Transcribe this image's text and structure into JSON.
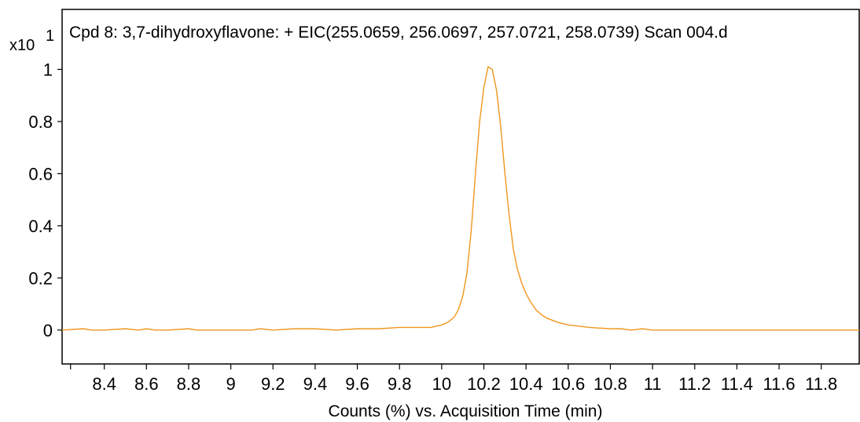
{
  "chart_data": {
    "type": "line",
    "title": "Cpd 8: 3,7-dihydroxyflavone: + EIC(255.0659, 256.0697, 257.0721, 258.0739) Scan 004.d",
    "xlabel": "Counts (%) vs. Acquisition Time (min)",
    "ylabel": "",
    "y_multiplier": "x10",
    "y_multiplier_exp": "1",
    "xlim": [
      8.2,
      11.98
    ],
    "ylim": [
      -0.13,
      1.23
    ],
    "x_ticks": [
      8.4,
      8.6,
      8.8,
      9,
      9.2,
      9.4,
      9.6,
      9.8,
      10,
      10.2,
      10.4,
      10.6,
      10.8,
      11,
      11.2,
      11.4,
      11.6,
      11.8
    ],
    "x_tick_labels": [
      "8.4",
      "8.6",
      "8.8",
      "9",
      "9.2",
      "9.4",
      "9.6",
      "9.8",
      "10",
      "10.2",
      "10.4",
      "10.6",
      "10.8",
      "11",
      "11.2",
      "11.4",
      "11.6",
      "11.8"
    ],
    "y_ticks": [
      0,
      0.2,
      0.4,
      0.6,
      0.8,
      1
    ],
    "y_tick_labels": [
      "0",
      "0.2",
      "0.4",
      "0.6",
      "0.8",
      "1"
    ],
    "grid": false,
    "line_color": "#f0961e",
    "series": [
      {
        "x": [
          8.2,
          8.3,
          8.34,
          8.4,
          8.5,
          8.56,
          8.6,
          8.64,
          8.7,
          8.8,
          8.84,
          8.9,
          9.0,
          9.1,
          9.14,
          9.2,
          9.3,
          9.4,
          9.5,
          9.6,
          9.7,
          9.8,
          9.86,
          9.9,
          9.95,
          10.0,
          10.03,
          10.06,
          10.08,
          10.1,
          10.12,
          10.14,
          10.16,
          10.18,
          10.2,
          10.22,
          10.24,
          10.26,
          10.28,
          10.3,
          10.32,
          10.34,
          10.36,
          10.38,
          10.4,
          10.42,
          10.45,
          10.48,
          10.5,
          10.55,
          10.6,
          10.65,
          10.7,
          10.8,
          10.85,
          10.9,
          10.95,
          11.0,
          11.1,
          11.2,
          11.3,
          11.4,
          11.5,
          11.6,
          11.7,
          11.8,
          11.9,
          11.98
        ],
        "y": [
          0.0,
          0.005,
          0.0,
          0.0,
          0.005,
          0.0,
          0.005,
          0.0,
          0.0,
          0.005,
          0.0,
          0.0,
          0.0,
          0.0,
          0.005,
          0.0,
          0.005,
          0.005,
          0.0,
          0.005,
          0.005,
          0.01,
          0.01,
          0.01,
          0.01,
          0.02,
          0.03,
          0.05,
          0.08,
          0.13,
          0.22,
          0.38,
          0.6,
          0.8,
          0.93,
          1.01,
          1.0,
          0.92,
          0.78,
          0.6,
          0.44,
          0.31,
          0.23,
          0.18,
          0.14,
          0.11,
          0.075,
          0.055,
          0.045,
          0.03,
          0.02,
          0.015,
          0.01,
          0.005,
          0.005,
          0.0,
          0.005,
          0.0,
          0.0,
          0.0,
          0.0,
          0.0,
          0.0,
          0.0,
          0.0,
          0.0,
          0.0,
          0.0
        ]
      }
    ]
  }
}
